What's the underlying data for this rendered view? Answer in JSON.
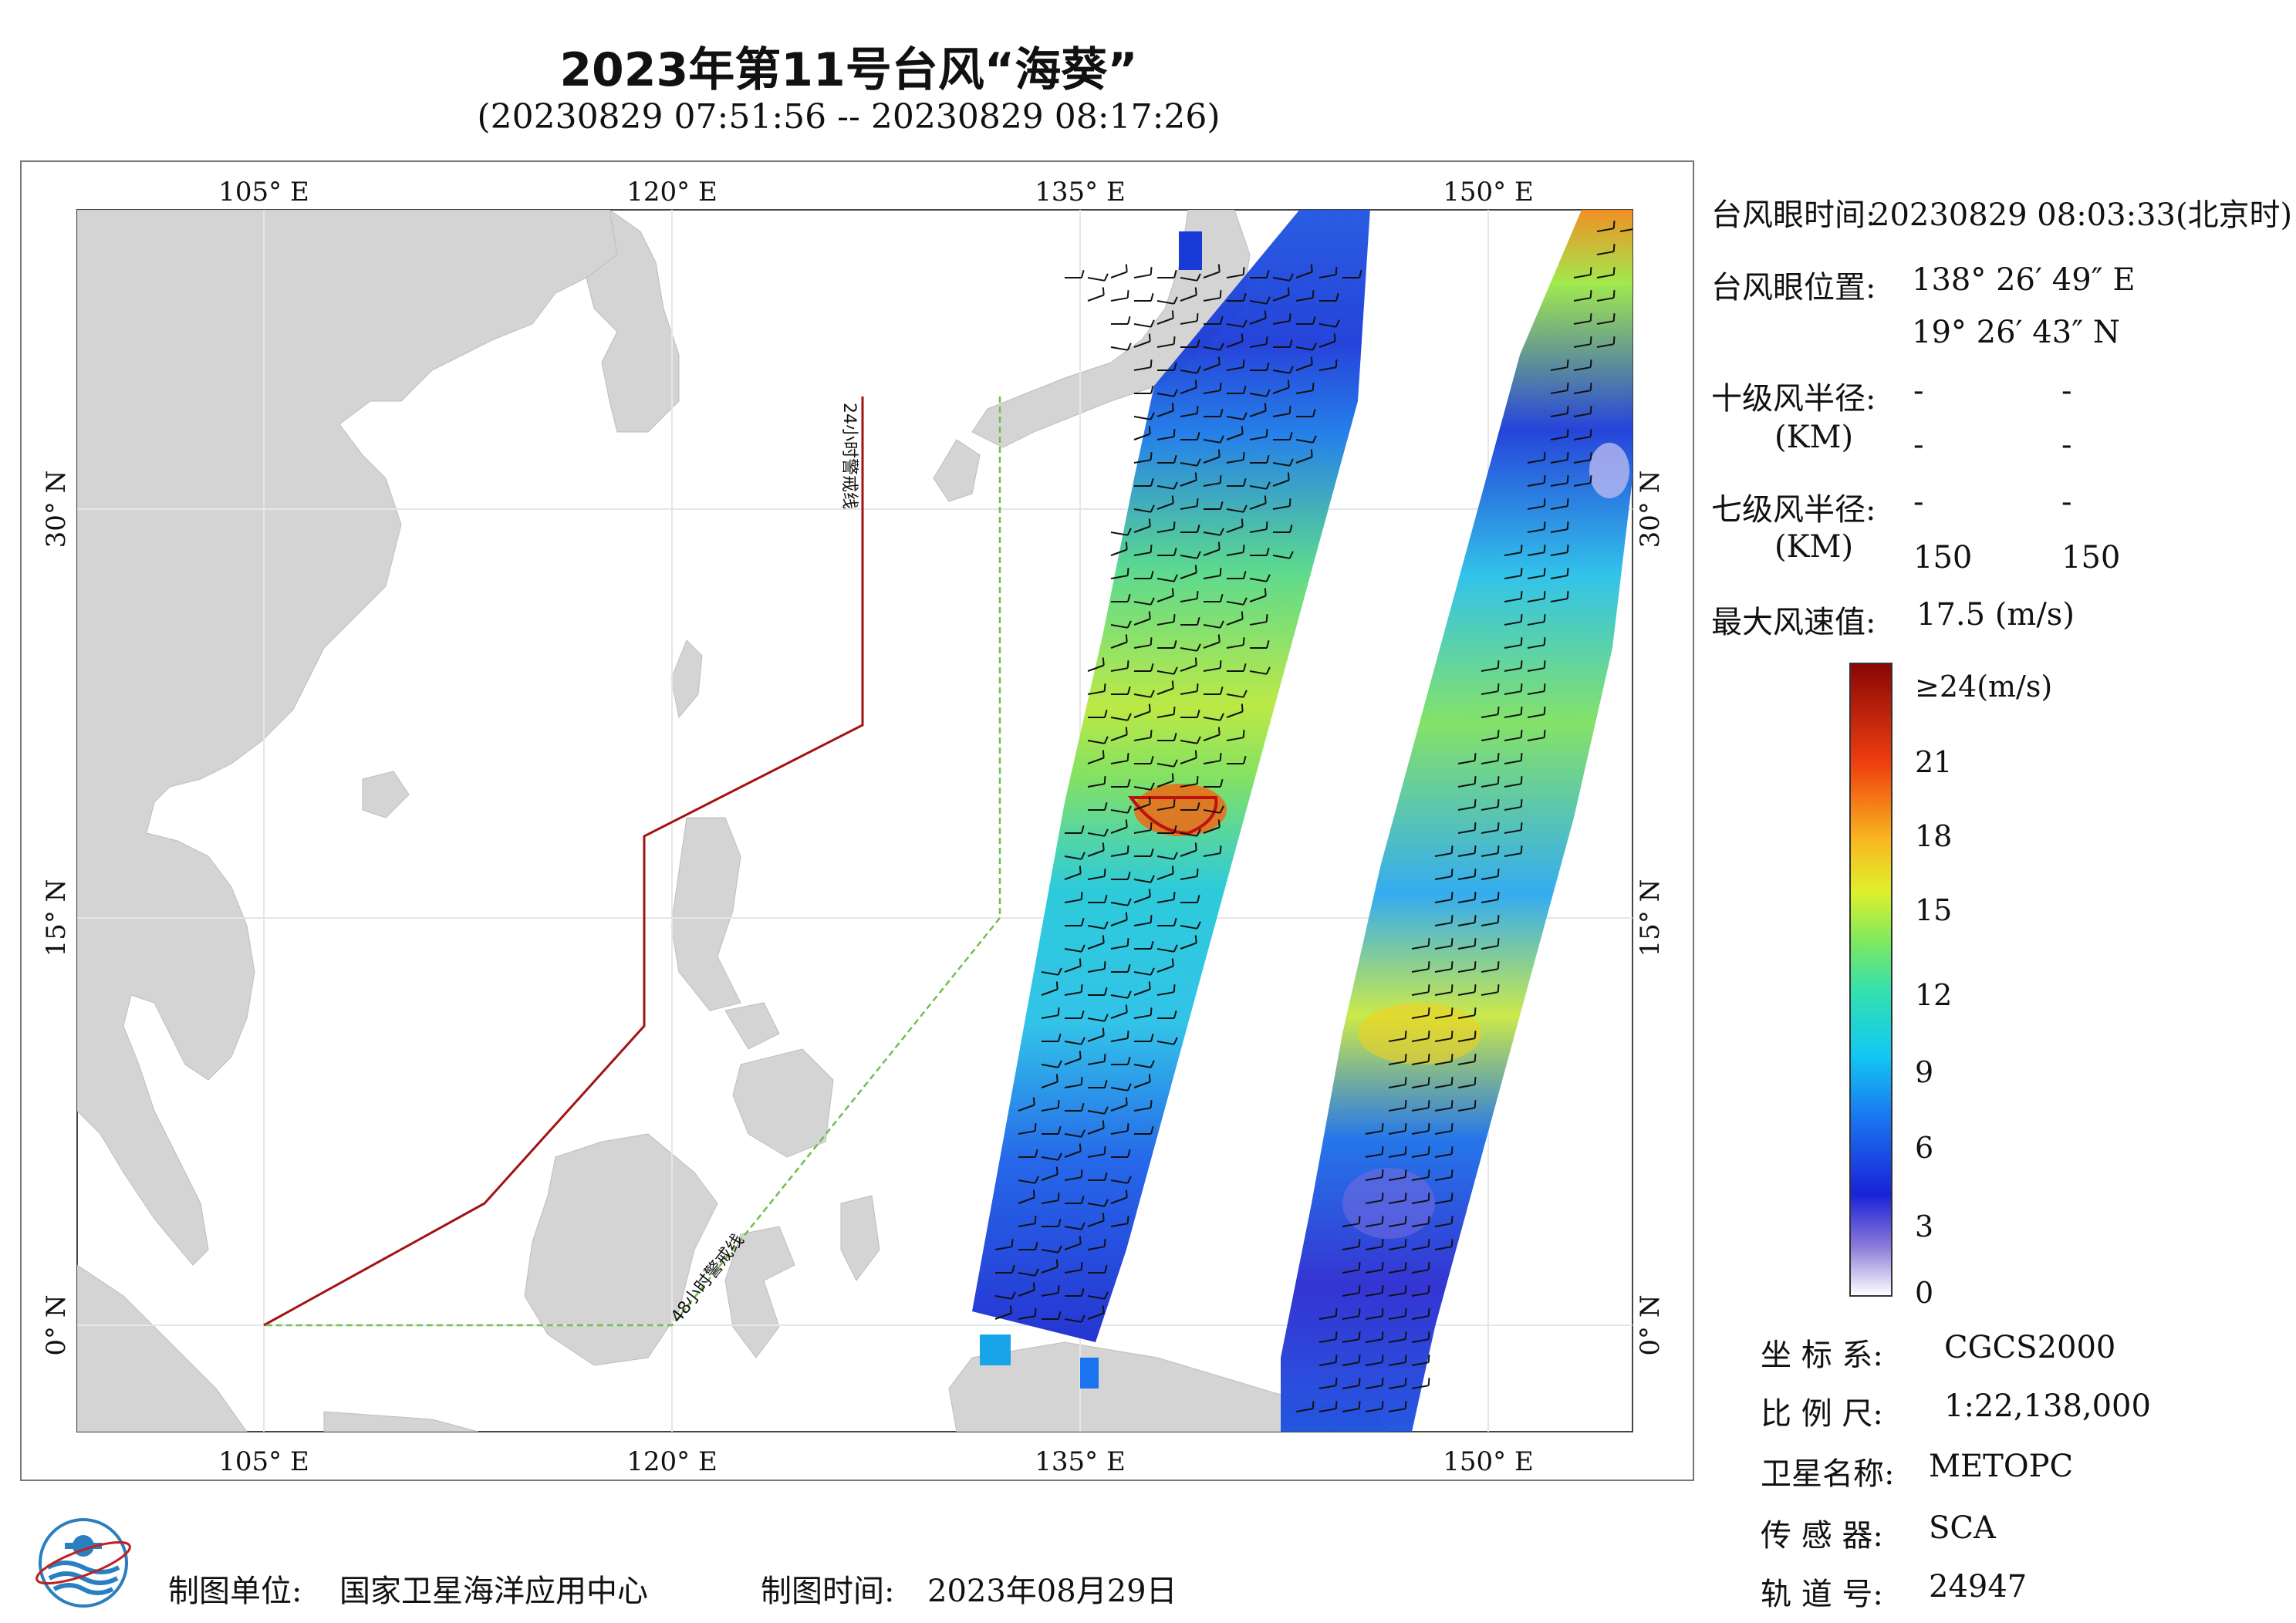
{
  "title": "2023年第11号台风“海葵”",
  "subtitle": "(20230829 07:51:56 -- 20230829 08:17:26)",
  "map": {
    "lon_labels": [
      "105° E",
      "120° E",
      "135° E",
      "150° E"
    ],
    "lat_labels": [
      "30° N",
      "15° N",
      "0° N"
    ],
    "warning_24h": "24小时警戒线",
    "warning_48h": "48小时警戒线",
    "colors": {
      "land": "#d4d4d4",
      "sea": "#ffffff",
      "warning_24h": "#a31212",
      "warning_48h": "#6fbf4a"
    }
  },
  "info": {
    "eye_time_label": "台风眼时间:",
    "eye_time_value": "20230829 08:03:33(北京时)",
    "eye_pos_label": "台风眼位置:",
    "eye_lon": "138° 26′ 49″ E",
    "eye_lat": "19° 26′ 43″ N",
    "r10_label": "十级风半径:",
    "r10_unit": "(KM)",
    "r10_values": [
      "-",
      "-",
      "-",
      "-"
    ],
    "r7_label": "七级风半径:",
    "r7_unit": "(KM)",
    "r7_values": [
      "-",
      "-",
      "150",
      "150"
    ],
    "max_wind_label": "最大风速值:",
    "max_wind_value": "17.5 (m/s)"
  },
  "colorbar": {
    "labels": [
      "≥24(m/s)",
      "21",
      "18",
      "15",
      "12",
      "9",
      "6",
      "3",
      "0"
    ],
    "values": [
      24,
      21,
      18,
      15,
      12,
      9,
      6,
      3,
      0
    ]
  },
  "meta": {
    "crs_label": "坐 标 系:",
    "crs_value": "CGCS2000",
    "scale_label": "比 例 尺:",
    "scale_value": "1:22,138,000",
    "satellite_label": "卫星名称:",
    "satellite_value": "METOPC",
    "sensor_label": "传 感 器:",
    "sensor_value": "SCA",
    "orbit_label": "轨 道 号:",
    "orbit_value": "24947"
  },
  "footer": {
    "org_label": "制图单位:",
    "org_value": "国家卫星海洋应用中心",
    "date_label": "制图时间:",
    "date_value": "2023年08月29日"
  }
}
